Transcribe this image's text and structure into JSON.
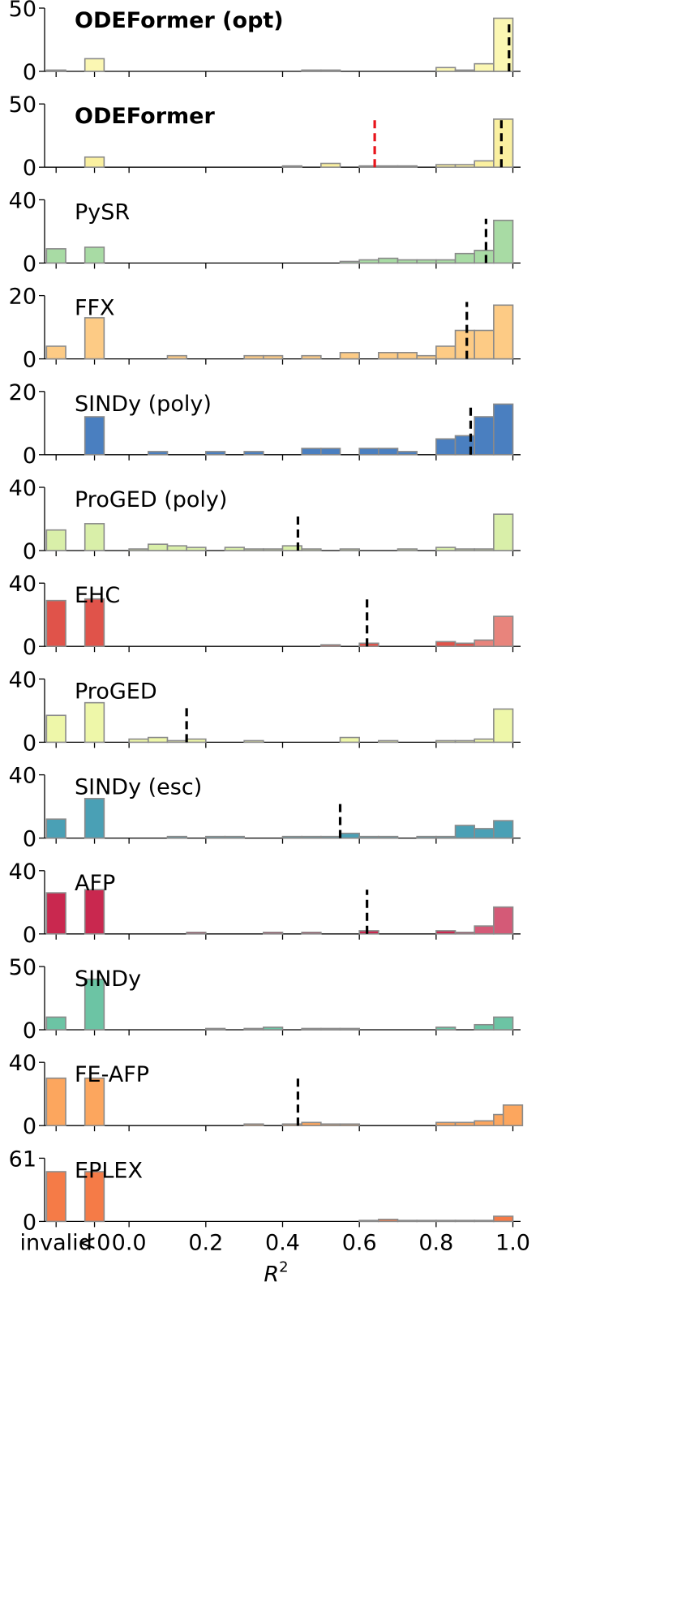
{
  "chart_data": {
    "type": "bar",
    "subtype": "stacked-histogram-panels",
    "xlabel": "R",
    "xlabel_superscript": "2",
    "x_ticks": [
      "invalid",
      "<0",
      "0.0",
      "0.2",
      "0.4",
      "0.6",
      "0.8",
      "1.0"
    ],
    "x_range": [
      -0.22,
      1.02
    ],
    "bin_width": 0.05,
    "categorical_bins": [
      "invalid",
      "<0"
    ],
    "panels": [
      {
        "name": "ODEFormer (opt)",
        "bold": true,
        "color": "#fbf7b3",
        "yticks": [
          0,
          50
        ],
        "ymax": 50,
        "median": 0.99,
        "median_color": "#000000",
        "median_height": 40,
        "invalid": 1,
        "negative": 10,
        "bins": [
          {
            "x": 0.45,
            "v": 1
          },
          {
            "x": 0.5,
            "v": 1
          },
          {
            "x": 0.8,
            "v": 3
          },
          {
            "x": 0.85,
            "v": 1
          },
          {
            "x": 0.9,
            "v": 6
          },
          {
            "x": 0.95,
            "v": 42
          }
        ]
      },
      {
        "name": "ODEFormer",
        "bold": true,
        "color": "#faf0a0",
        "yticks": [
          0,
          50
        ],
        "ymax": 50,
        "median": 0.97,
        "median_color": "#000000",
        "median_height": 40,
        "median2": 0.64,
        "median2_color": "#e8141b",
        "median2_height": 40,
        "invalid": 0,
        "negative": 8,
        "bins": [
          {
            "x": 0.4,
            "v": 1
          },
          {
            "x": 0.5,
            "v": 3
          },
          {
            "x": 0.6,
            "v": 1
          },
          {
            "x": 0.65,
            "v": 1
          },
          {
            "x": 0.7,
            "v": 1
          },
          {
            "x": 0.8,
            "v": 2
          },
          {
            "x": 0.85,
            "v": 2
          },
          {
            "x": 0.9,
            "v": 5
          },
          {
            "x": 0.95,
            "v": 38
          }
        ]
      },
      {
        "name": "PySR",
        "bold": false,
        "color": "#a8dba4",
        "yticks": [
          0,
          40
        ],
        "ymax": 40,
        "median": 0.93,
        "median_color": "#000000",
        "median_height": 28,
        "invalid": 9,
        "negative": 10,
        "bins": [
          {
            "x": 0.55,
            "v": 1
          },
          {
            "x": 0.6,
            "v": 2
          },
          {
            "x": 0.65,
            "v": 3
          },
          {
            "x": 0.7,
            "v": 2
          },
          {
            "x": 0.75,
            "v": 2
          },
          {
            "x": 0.8,
            "v": 2
          },
          {
            "x": 0.85,
            "v": 6
          },
          {
            "x": 0.9,
            "v": 8
          },
          {
            "x": 0.95,
            "v": 27
          }
        ]
      },
      {
        "name": "FFX",
        "bold": false,
        "color": "#fdcb85",
        "yticks": [
          0,
          20
        ],
        "ymax": 20,
        "median": 0.88,
        "median_color": "#000000",
        "median_height": 18,
        "invalid": 4,
        "negative": 13,
        "bins": [
          {
            "x": 0.1,
            "v": 1
          },
          {
            "x": 0.3,
            "v": 1
          },
          {
            "x": 0.35,
            "v": 1
          },
          {
            "x": 0.45,
            "v": 1
          },
          {
            "x": 0.55,
            "v": 2
          },
          {
            "x": 0.65,
            "v": 2
          },
          {
            "x": 0.7,
            "v": 2
          },
          {
            "x": 0.75,
            "v": 1
          },
          {
            "x": 0.8,
            "v": 4
          },
          {
            "x": 0.85,
            "v": 9
          },
          {
            "x": 0.9,
            "v": 9
          },
          {
            "x": 0.95,
            "v": 17
          }
        ]
      },
      {
        "name": "SINDy (poly)",
        "bold": false,
        "color": "#4a7fc0",
        "yticks": [
          0,
          20
        ],
        "ymax": 20,
        "median": 0.89,
        "median_color": "#000000",
        "median_height": 16,
        "invalid": 0,
        "negative": 12,
        "bins": [
          {
            "x": 0.05,
            "v": 1
          },
          {
            "x": 0.2,
            "v": 1
          },
          {
            "x": 0.3,
            "v": 1
          },
          {
            "x": 0.45,
            "v": 2
          },
          {
            "x": 0.5,
            "v": 2
          },
          {
            "x": 0.6,
            "v": 2
          },
          {
            "x": 0.65,
            "v": 2
          },
          {
            "x": 0.7,
            "v": 1
          },
          {
            "x": 0.8,
            "v": 5
          },
          {
            "x": 0.85,
            "v": 6
          },
          {
            "x": 0.9,
            "v": 12
          },
          {
            "x": 0.95,
            "v": 16
          }
        ]
      },
      {
        "name": "ProGED (poly)",
        "bold": false,
        "color": "#d9efa9",
        "yticks": [
          0,
          40
        ],
        "ymax": 40,
        "median": 0.44,
        "median_color": "#000000",
        "median_height": 24,
        "invalid": 13,
        "negative": 17,
        "bins": [
          {
            "x": 0.0,
            "v": 1
          },
          {
            "x": 0.05,
            "v": 4
          },
          {
            "x": 0.1,
            "v": 3
          },
          {
            "x": 0.15,
            "v": 2
          },
          {
            "x": 0.25,
            "v": 2
          },
          {
            "x": 0.3,
            "v": 1
          },
          {
            "x": 0.35,
            "v": 1
          },
          {
            "x": 0.4,
            "v": 3
          },
          {
            "x": 0.45,
            "v": 1
          },
          {
            "x": 0.55,
            "v": 1
          },
          {
            "x": 0.7,
            "v": 1
          },
          {
            "x": 0.8,
            "v": 2
          },
          {
            "x": 0.85,
            "v": 1
          },
          {
            "x": 0.9,
            "v": 1
          },
          {
            "x": 0.95,
            "v": 23
          }
        ]
      },
      {
        "name": "EHC",
        "bold": false,
        "color": "#e0534a",
        "color_light": "#e8847c",
        "yticks": [
          0,
          40
        ],
        "ymax": 40,
        "median": 0.62,
        "median_color": "#000000",
        "median_height": 30,
        "invalid": 29,
        "negative": 30,
        "bins": [
          {
            "x": 0.5,
            "v": 1
          },
          {
            "x": 0.6,
            "v": 2
          },
          {
            "x": 0.8,
            "v": 3
          },
          {
            "x": 0.85,
            "v": 2
          },
          {
            "x": 0.9,
            "v": 4
          },
          {
            "x": 0.95,
            "v": 19
          }
        ]
      },
      {
        "name": "ProGED",
        "bold": false,
        "color": "#eef7a9",
        "yticks": [
          0,
          40
        ],
        "ymax": 40,
        "median": 0.15,
        "median_color": "#000000",
        "median_height": 24,
        "invalid": 17,
        "negative": 25,
        "bins": [
          {
            "x": 0.0,
            "v": 2
          },
          {
            "x": 0.05,
            "v": 3
          },
          {
            "x": 0.1,
            "v": 1
          },
          {
            "x": 0.15,
            "v": 2
          },
          {
            "x": 0.3,
            "v": 1
          },
          {
            "x": 0.55,
            "v": 3
          },
          {
            "x": 0.65,
            "v": 1
          },
          {
            "x": 0.8,
            "v": 1
          },
          {
            "x": 0.85,
            "v": 1
          },
          {
            "x": 0.9,
            "v": 2
          },
          {
            "x": 0.95,
            "v": 21
          }
        ]
      },
      {
        "name": "SINDy (esc)",
        "bold": false,
        "color": "#4aa0b5",
        "yticks": [
          0,
          40
        ],
        "ymax": 40,
        "median": 0.55,
        "median_color": "#000000",
        "median_height": 24,
        "invalid": 12,
        "negative": 25,
        "bins": [
          {
            "x": 0.1,
            "v": 1
          },
          {
            "x": 0.2,
            "v": 1
          },
          {
            "x": 0.25,
            "v": 1
          },
          {
            "x": 0.4,
            "v": 1
          },
          {
            "x": 0.45,
            "v": 1
          },
          {
            "x": 0.5,
            "v": 1
          },
          {
            "x": 0.55,
            "v": 3
          },
          {
            "x": 0.6,
            "v": 1
          },
          {
            "x": 0.65,
            "v": 1
          },
          {
            "x": 0.75,
            "v": 1
          },
          {
            "x": 0.8,
            "v": 1
          },
          {
            "x": 0.85,
            "v": 8
          },
          {
            "x": 0.9,
            "v": 6
          },
          {
            "x": 0.95,
            "v": 11
          }
        ]
      },
      {
        "name": "AFP",
        "bold": false,
        "color": "#c9284f",
        "color_light": "#d45a77",
        "yticks": [
          0,
          40
        ],
        "ymax": 40,
        "median": 0.62,
        "median_color": "#000000",
        "median_height": 28,
        "invalid": 26,
        "negative": 28,
        "bins": [
          {
            "x": 0.15,
            "v": 1
          },
          {
            "x": 0.35,
            "v": 1
          },
          {
            "x": 0.45,
            "v": 1
          },
          {
            "x": 0.6,
            "v": 2
          },
          {
            "x": 0.8,
            "v": 2
          },
          {
            "x": 0.85,
            "v": 1
          },
          {
            "x": 0.9,
            "v": 5
          },
          {
            "x": 0.95,
            "v": 17
          }
        ]
      },
      {
        "name": "SINDy",
        "bold": false,
        "color": "#6cc4a4",
        "yticks": [
          0,
          50
        ],
        "ymax": 50,
        "median": null,
        "invalid": 10,
        "negative": 40,
        "bins": [
          {
            "x": 0.2,
            "v": 1
          },
          {
            "x": 0.3,
            "v": 1
          },
          {
            "x": 0.35,
            "v": 2
          },
          {
            "x": 0.45,
            "v": 1
          },
          {
            "x": 0.5,
            "v": 1
          },
          {
            "x": 0.55,
            "v": 1
          },
          {
            "x": 0.8,
            "v": 2
          },
          {
            "x": 0.9,
            "v": 4
          },
          {
            "x": 0.95,
            "v": 10
          }
        ]
      },
      {
        "name": "FE-AFP",
        "bold": false,
        "color": "#fca65e",
        "yticks": [
          0,
          40
        ],
        "ymax": 40,
        "median": 0.44,
        "median_color": "#000000",
        "median_height": 30,
        "invalid": 30,
        "negative": 30,
        "bins": [
          {
            "x": 0.3,
            "v": 1
          },
          {
            "x": 0.4,
            "v": 1
          },
          {
            "x": 0.45,
            "v": 2
          },
          {
            "x": 0.5,
            "v": 1
          },
          {
            "x": 0.55,
            "v": 1
          },
          {
            "x": 0.8,
            "v": 2
          },
          {
            "x": 0.85,
            "v": 2
          },
          {
            "x": 0.9,
            "v": 3
          },
          {
            "x": 0.95,
            "v": 7
          },
          {
            "x": 0.975,
            "v": 13
          }
        ]
      },
      {
        "name": "EPLEX",
        "bold": false,
        "color": "#f57b47",
        "yticks": [
          0,
          61
        ],
        "ymax": 61,
        "median": null,
        "invalid": 48,
        "negative": 48,
        "bins": [
          {
            "x": 0.6,
            "v": 1
          },
          {
            "x": 0.65,
            "v": 2
          },
          {
            "x": 0.7,
            "v": 1
          },
          {
            "x": 0.75,
            "v": 1
          },
          {
            "x": 0.8,
            "v": 1
          },
          {
            "x": 0.85,
            "v": 1
          },
          {
            "x": 0.9,
            "v": 1
          },
          {
            "x": 0.95,
            "v": 5
          }
        ]
      }
    ]
  }
}
